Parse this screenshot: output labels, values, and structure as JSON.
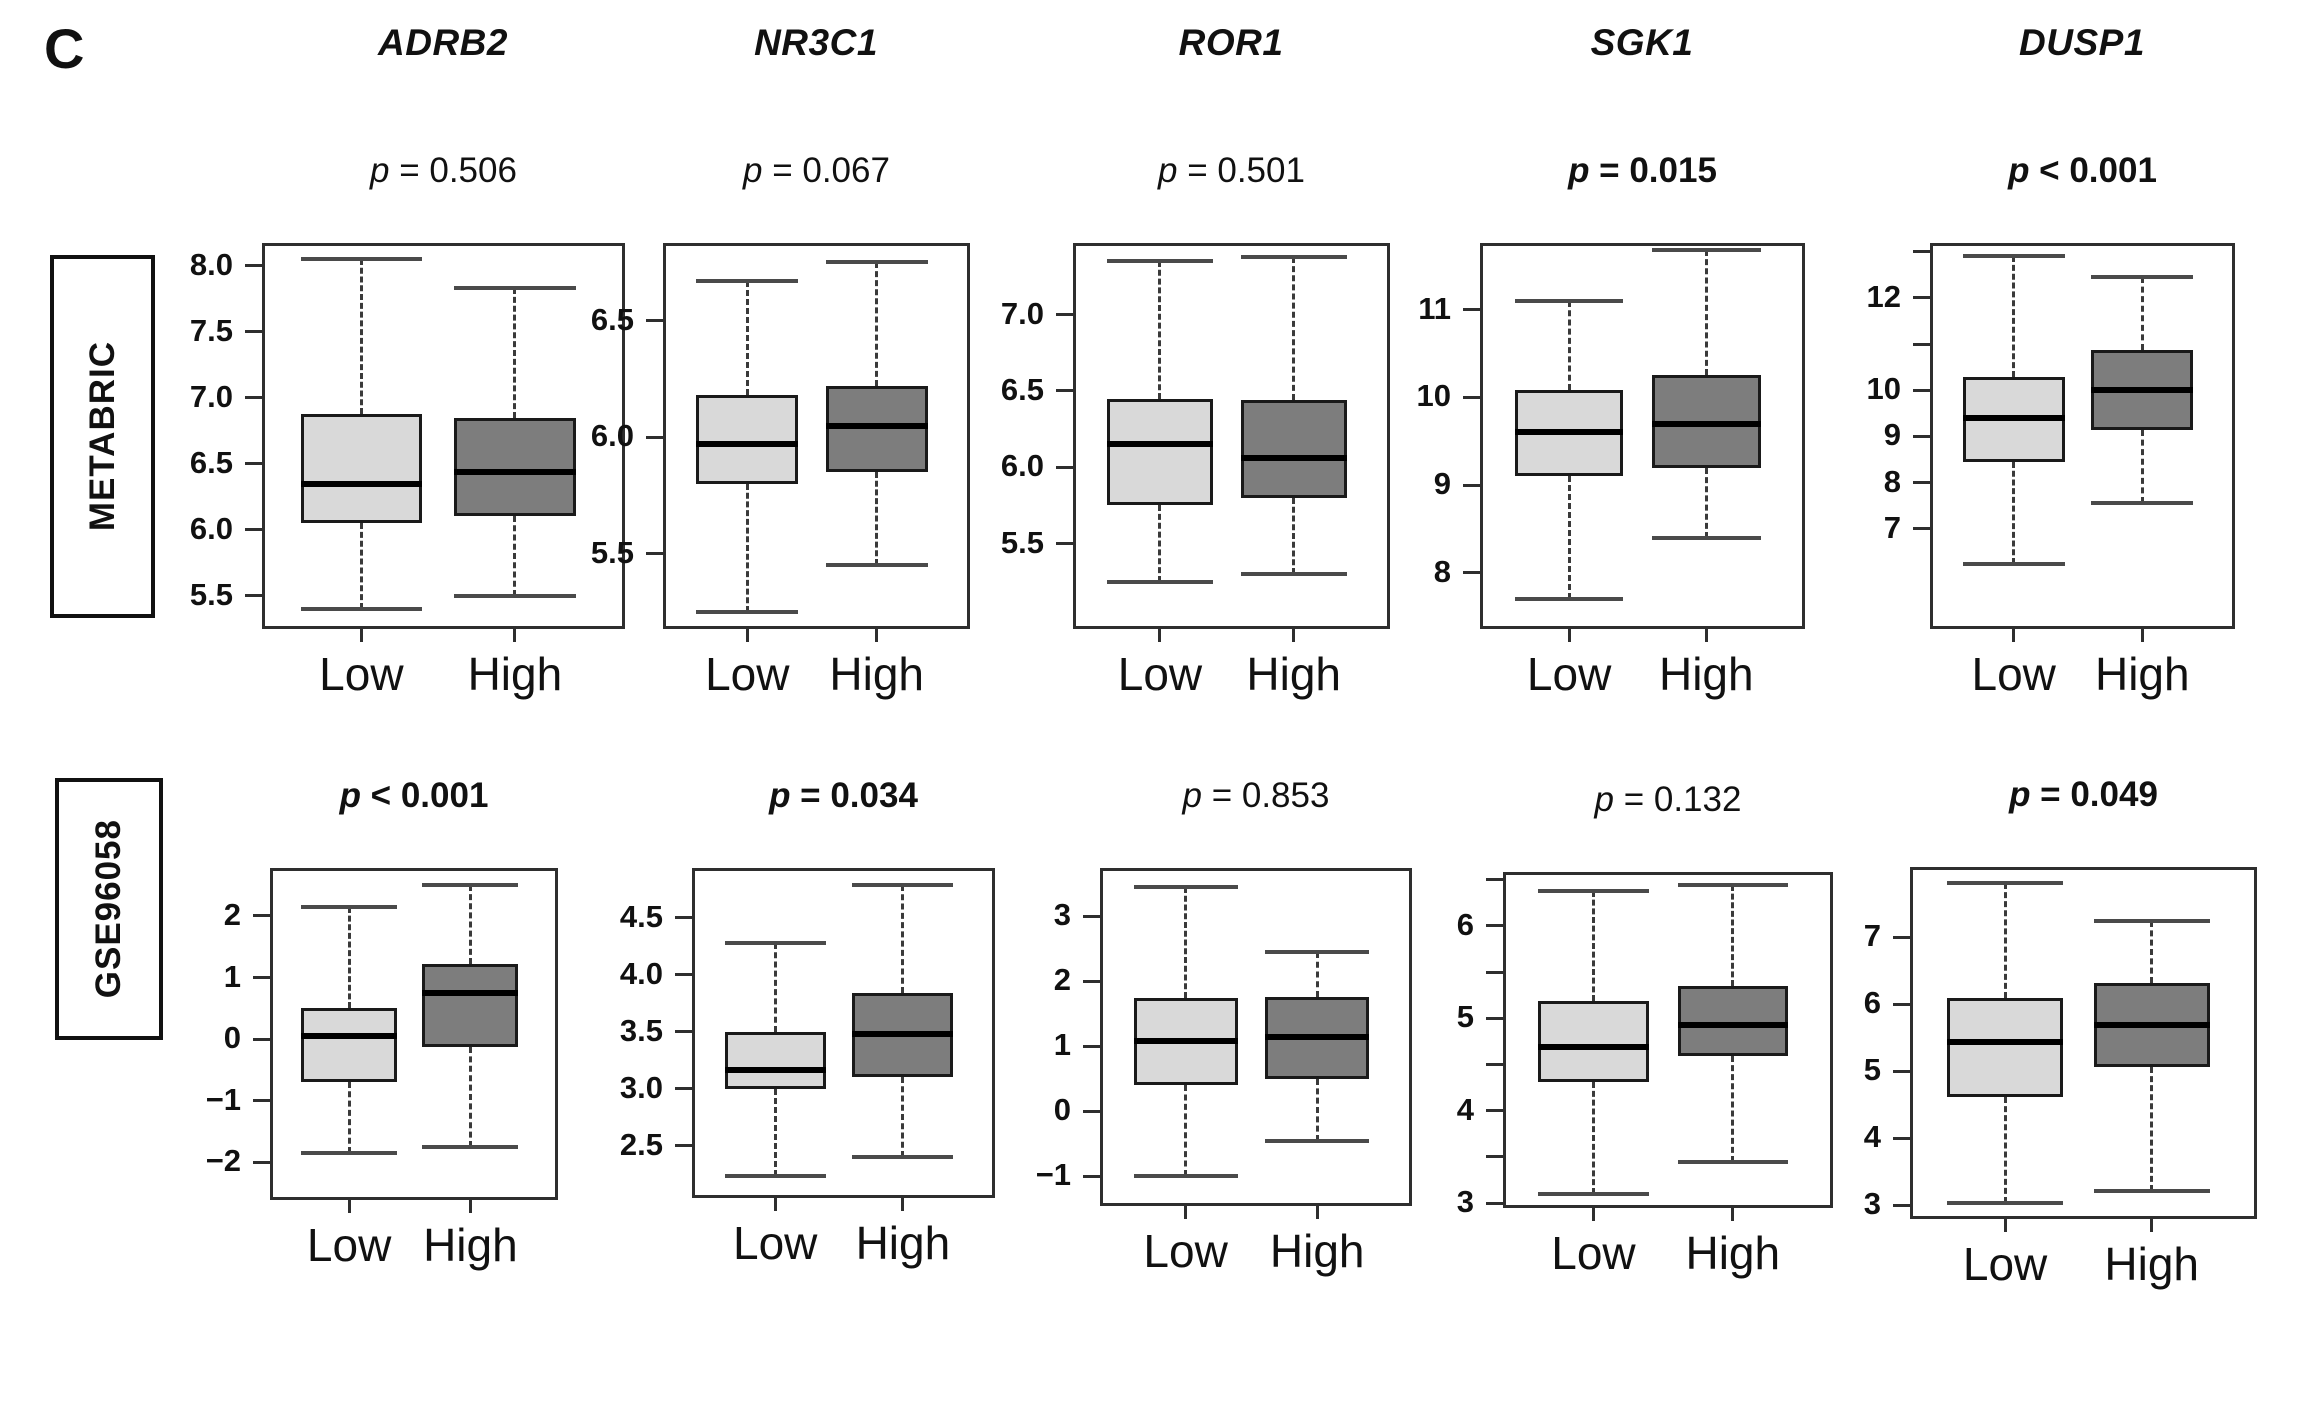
{
  "figure": {
    "panel_label": "C",
    "background": "#ffffff",
    "group_labels": [
      "Low",
      "High"
    ],
    "colors": {
      "low_box_fill": "#d9d9d9",
      "high_box_fill": "#7d7d7d",
      "box_border": "#1a1a1a",
      "median": "#000000",
      "whisker": "#3a3a3a",
      "panel_border": "#2e2e2e"
    }
  },
  "genes": [
    "ADRB2",
    "NR3C1",
    "ROR1",
    "SGK1",
    "DUSP1"
  ],
  "rows": [
    {
      "dataset": "METABRIC"
    },
    {
      "dataset": "GSE96058"
    }
  ],
  "chart_data": [
    {
      "type": "boxplot",
      "dataset": "METABRIC",
      "gene": "ADRB2",
      "p_label": "p = 0.506",
      "p_significant": false,
      "ylim": [
        5.27,
        8.15
      ],
      "yticks": [
        {
          "value": 5.5,
          "label": "5.5"
        },
        {
          "value": 6.0,
          "label": "6.0"
        },
        {
          "value": 6.5,
          "label": "6.5"
        },
        {
          "value": 7.0,
          "label": "7.0"
        },
        {
          "value": 7.5,
          "label": "7.5"
        },
        {
          "value": 8.0,
          "label": "8.0"
        }
      ],
      "categories": [
        "Low",
        "High"
      ],
      "series": [
        {
          "name": "Low",
          "whisker_low": 5.4,
          "q1": 6.05,
          "median": 6.35,
          "q3": 6.88,
          "whisker_high": 8.05
        },
        {
          "name": "High",
          "whisker_low": 5.5,
          "q1": 6.1,
          "median": 6.44,
          "q3": 6.85,
          "whisker_high": 7.83
        }
      ]
    },
    {
      "type": "boxplot",
      "dataset": "METABRIC",
      "gene": "NR3C1",
      "p_label": "p = 0.067",
      "p_significant": false,
      "ylim": [
        5.19,
        6.82
      ],
      "yticks": [
        {
          "value": 5.5,
          "label": "5.5"
        },
        {
          "value": 6.0,
          "label": "6.0"
        },
        {
          "value": 6.5,
          "label": "6.5"
        }
      ],
      "categories": [
        "Low",
        "High"
      ],
      "series": [
        {
          "name": "Low",
          "whisker_low": 5.25,
          "q1": 5.8,
          "median": 5.97,
          "q3": 6.18,
          "whisker_high": 6.67
        },
        {
          "name": "High",
          "whisker_low": 5.45,
          "q1": 5.85,
          "median": 6.05,
          "q3": 6.22,
          "whisker_high": 6.75
        }
      ]
    },
    {
      "type": "boxplot",
      "dataset": "METABRIC",
      "gene": "ROR1",
      "p_label": "p = 0.501",
      "p_significant": false,
      "ylim": [
        4.96,
        7.45
      ],
      "yticks": [
        {
          "value": 5.5,
          "label": "5.5"
        },
        {
          "value": 6.0,
          "label": "6.0"
        },
        {
          "value": 6.5,
          "label": "6.5"
        },
        {
          "value": 7.0,
          "label": "7.0"
        }
      ],
      "categories": [
        "Low",
        "High"
      ],
      "series": [
        {
          "name": "Low",
          "whisker_low": 5.25,
          "q1": 5.75,
          "median": 6.15,
          "q3": 6.45,
          "whisker_high": 7.35
        },
        {
          "name": "High",
          "whisker_low": 5.3,
          "q1": 5.8,
          "median": 6.06,
          "q3": 6.44,
          "whisker_high": 7.38
        }
      ]
    },
    {
      "type": "boxplot",
      "dataset": "METABRIC",
      "gene": "SGK1",
      "p_label": "p = 0.015",
      "p_significant": true,
      "ylim": [
        7.39,
        11.73
      ],
      "yticks": [
        {
          "value": 8,
          "label": "8"
        },
        {
          "value": 9,
          "label": "9"
        },
        {
          "value": 10,
          "label": "10"
        },
        {
          "value": 11,
          "label": "11"
        }
      ],
      "categories": [
        "Low",
        "High"
      ],
      "series": [
        {
          "name": "Low",
          "whisker_low": 7.7,
          "q1": 9.1,
          "median": 9.6,
          "q3": 10.08,
          "whisker_high": 11.1
        },
        {
          "name": "High",
          "whisker_low": 8.4,
          "q1": 9.2,
          "median": 9.7,
          "q3": 10.26,
          "whisker_high": 11.68
        }
      ]
    },
    {
      "type": "boxplot",
      "dataset": "METABRIC",
      "gene": "DUSP1",
      "p_label": "p < 0.001",
      "p_significant": true,
      "ylim": [
        4.9,
        13.12
      ],
      "yticks": [
        {
          "value": 7,
          "label": "7"
        },
        {
          "value": 8,
          "label": "8"
        },
        {
          "value": 9,
          "label": "9"
        },
        {
          "value": 10,
          "label": "10"
        },
        {
          "value": 11,
          "label": ""
        },
        {
          "value": 12,
          "label": "12"
        },
        {
          "value": 13,
          "label": ""
        }
      ],
      "categories": [
        "Low",
        "High"
      ],
      "series": [
        {
          "name": "Low",
          "whisker_low": 6.25,
          "q1": 8.45,
          "median": 9.4,
          "q3": 10.28,
          "whisker_high": 12.9
        },
        {
          "name": "High",
          "whisker_low": 7.55,
          "q1": 9.15,
          "median": 10.0,
          "q3": 10.88,
          "whisker_high": 12.45
        }
      ]
    },
    {
      "type": "boxplot",
      "dataset": "GSE96058",
      "gene": "ADRB2",
      "p_label": "p < 0.001",
      "p_significant": true,
      "ylim": [
        -2.56,
        2.73
      ],
      "yticks": [
        {
          "value": -2,
          "label": "−2"
        },
        {
          "value": -1,
          "label": "−1"
        },
        {
          "value": 0,
          "label": "0"
        },
        {
          "value": 1,
          "label": "1"
        },
        {
          "value": 2,
          "label": "2"
        }
      ],
      "categories": [
        "Low",
        "High"
      ],
      "series": [
        {
          "name": "Low",
          "whisker_low": -1.85,
          "q1": -0.7,
          "median": 0.05,
          "q3": 0.5,
          "whisker_high": 2.15
        },
        {
          "name": "High",
          "whisker_low": -1.75,
          "q1": -0.12,
          "median": 0.75,
          "q3": 1.22,
          "whisker_high": 2.5
        }
      ]
    },
    {
      "type": "boxplot",
      "dataset": "GSE96058",
      "gene": "NR3C1",
      "p_label": "p = 0.034",
      "p_significant": true,
      "ylim": [
        2.07,
        4.91
      ],
      "yticks": [
        {
          "value": 2.5,
          "label": "2.5"
        },
        {
          "value": 3.0,
          "label": "3.0"
        },
        {
          "value": 3.5,
          "label": "3.5"
        },
        {
          "value": 4.0,
          "label": "4.0"
        },
        {
          "value": 4.5,
          "label": "4.5"
        }
      ],
      "categories": [
        "Low",
        "High"
      ],
      "series": [
        {
          "name": "Low",
          "whisker_low": 2.24,
          "q1": 3.0,
          "median": 3.17,
          "q3": 3.5,
          "whisker_high": 4.28
        },
        {
          "name": "High",
          "whisker_low": 2.4,
          "q1": 3.1,
          "median": 3.48,
          "q3": 3.84,
          "whisker_high": 4.79
        }
      ]
    },
    {
      "type": "boxplot",
      "dataset": "GSE96058",
      "gene": "ROR1",
      "p_label": "p = 0.853",
      "p_significant": false,
      "ylim": [
        -1.41,
        3.7
      ],
      "yticks": [
        {
          "value": -1,
          "label": "−1"
        },
        {
          "value": 0,
          "label": "0"
        },
        {
          "value": 1,
          "label": "1"
        },
        {
          "value": 2,
          "label": "2"
        },
        {
          "value": 3,
          "label": "3"
        }
      ],
      "categories": [
        "Low",
        "High"
      ],
      "series": [
        {
          "name": "Low",
          "whisker_low": -1.0,
          "q1": 0.4,
          "median": 1.08,
          "q3": 1.74,
          "whisker_high": 3.45
        },
        {
          "name": "High",
          "whisker_low": -0.45,
          "q1": 0.5,
          "median": 1.15,
          "q3": 1.76,
          "whisker_high": 2.45
        }
      ]
    },
    {
      "type": "boxplot",
      "dataset": "GSE96058",
      "gene": "SGK1",
      "p_label": "p = 0.132",
      "p_significant": false,
      "ylim": [
        2.98,
        6.55
      ],
      "yticks": [
        {
          "value": 3,
          "label": "3"
        },
        {
          "value": 3.5,
          "label": ""
        },
        {
          "value": 4,
          "label": "4"
        },
        {
          "value": 4.5,
          "label": ""
        },
        {
          "value": 5,
          "label": "5"
        },
        {
          "value": 5.5,
          "label": ""
        },
        {
          "value": 6,
          "label": "6"
        },
        {
          "value": 6.5,
          "label": ""
        }
      ],
      "categories": [
        "Low",
        "High"
      ],
      "series": [
        {
          "name": "Low",
          "whisker_low": 3.1,
          "q1": 4.31,
          "median": 4.69,
          "q3": 5.19,
          "whisker_high": 6.38
        },
        {
          "name": "High",
          "whisker_low": 3.44,
          "q1": 4.59,
          "median": 4.93,
          "q3": 5.35,
          "whisker_high": 6.44
        }
      ]
    },
    {
      "type": "boxplot",
      "dataset": "GSE96058",
      "gene": "DUSP1",
      "p_label": "p = 0.049",
      "p_significant": true,
      "ylim": [
        2.84,
        8.0
      ],
      "yticks": [
        {
          "value": 3,
          "label": "3"
        },
        {
          "value": 4,
          "label": "4"
        },
        {
          "value": 5,
          "label": "5"
        },
        {
          "value": 6,
          "label": "6"
        },
        {
          "value": 7,
          "label": "7"
        }
      ],
      "categories": [
        "Low",
        "High"
      ],
      "series": [
        {
          "name": "Low",
          "whisker_low": 3.03,
          "q1": 4.62,
          "median": 5.43,
          "q3": 6.09,
          "whisker_high": 7.8
        },
        {
          "name": "High",
          "whisker_low": 3.21,
          "q1": 5.06,
          "median": 5.69,
          "q3": 6.31,
          "whisker_high": 7.24
        }
      ]
    }
  ]
}
